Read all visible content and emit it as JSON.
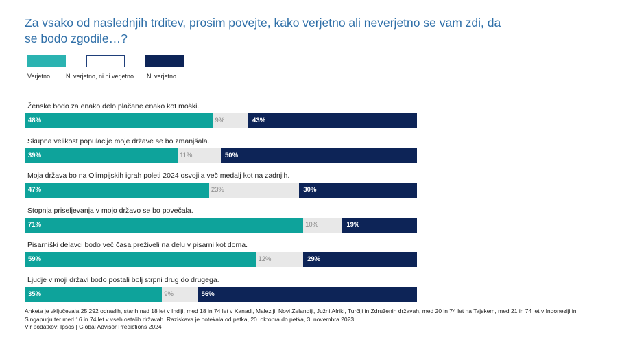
{
  "title": "Za vsako od naslednjih trditev, prosim povejte, kako verjetno ali neverjetno se vam zdi, da se bodo zgodile…?",
  "legend": [
    {
      "label": "Verjetno",
      "color": "#2bb3b1"
    },
    {
      "label": "Ni verjetno, ni ni verjetno",
      "color": "#ffffff"
    },
    {
      "label": "Ni verjetno",
      "color": "#0d2457"
    }
  ],
  "colors": {
    "likely": "#0ea39b",
    "neutral_bg": "#e8e8e8",
    "unlikely": "#0d2457",
    "neutral_text": "#888888"
  },
  "chart_data": {
    "type": "bar",
    "orientation": "horizontal-stacked",
    "title": "Za vsako od naslednjih trditev, prosim povejte, kako verjetno ali neverjetno se vam zdi, da se bodo zgodile…?",
    "series": [
      {
        "name": "Verjetno",
        "values": [
          48,
          39,
          47,
          71,
          59,
          35
        ]
      },
      {
        "name": "Ni verjetno, ni ni verjetno",
        "values": [
          9,
          11,
          23,
          10,
          12,
          9
        ]
      },
      {
        "name": "Ni verjetno",
        "values": [
          43,
          50,
          30,
          19,
          29,
          56
        ]
      }
    ],
    "categories": [
      "Ženske bodo za enako delo plačane enako kot moški.",
      "Skupna velikost populacije moje države se bo zmanjšala.",
      "Moja država bo na Olimpijskih igrah poleti 2024 osvojila več medalj kot na zadnjih.",
      "Stopnja priseljevanja v mojo državo se bo povečala.",
      " Pisarniški delavci bodo več časa preživeli na delu v pisarni kot doma.",
      "Ljudje v moji državi bodo postali bolj strpni drug do drugega."
    ],
    "labels": {
      "likely": [
        "48%",
        "39%",
        "47%",
        "71%",
        "59%",
        "35%"
      ],
      "neutral": [
        "9%",
        "11%",
        "23%",
        "10%",
        "12%",
        "9%"
      ],
      "unlikely": [
        "43%",
        "50%",
        "30%",
        "19%",
        "29%",
        "56%"
      ]
    },
    "xlim": [
      0,
      100
    ]
  },
  "footnote": {
    "line1": "Anketa je vključevala 25.292 odraslih, starih nad 18 let v Indiji, med 18 in 74 let v Kanadi, Maleziji, Novi Zelandiji, Južni Afriki, Turčiji in Združenih državah, med 20 in 74 let na Tajskem, med 21 in 74 let v Indoneziji in Singapurju ter med 16 in 74 let v vseh ostalih državah. Raziskava je potekala od petka, 20. oktobra do petka, 3. novembra 2023.",
    "line2": "Vir podatkov: Ipsos | Global Advisor Predictions 2024"
  }
}
